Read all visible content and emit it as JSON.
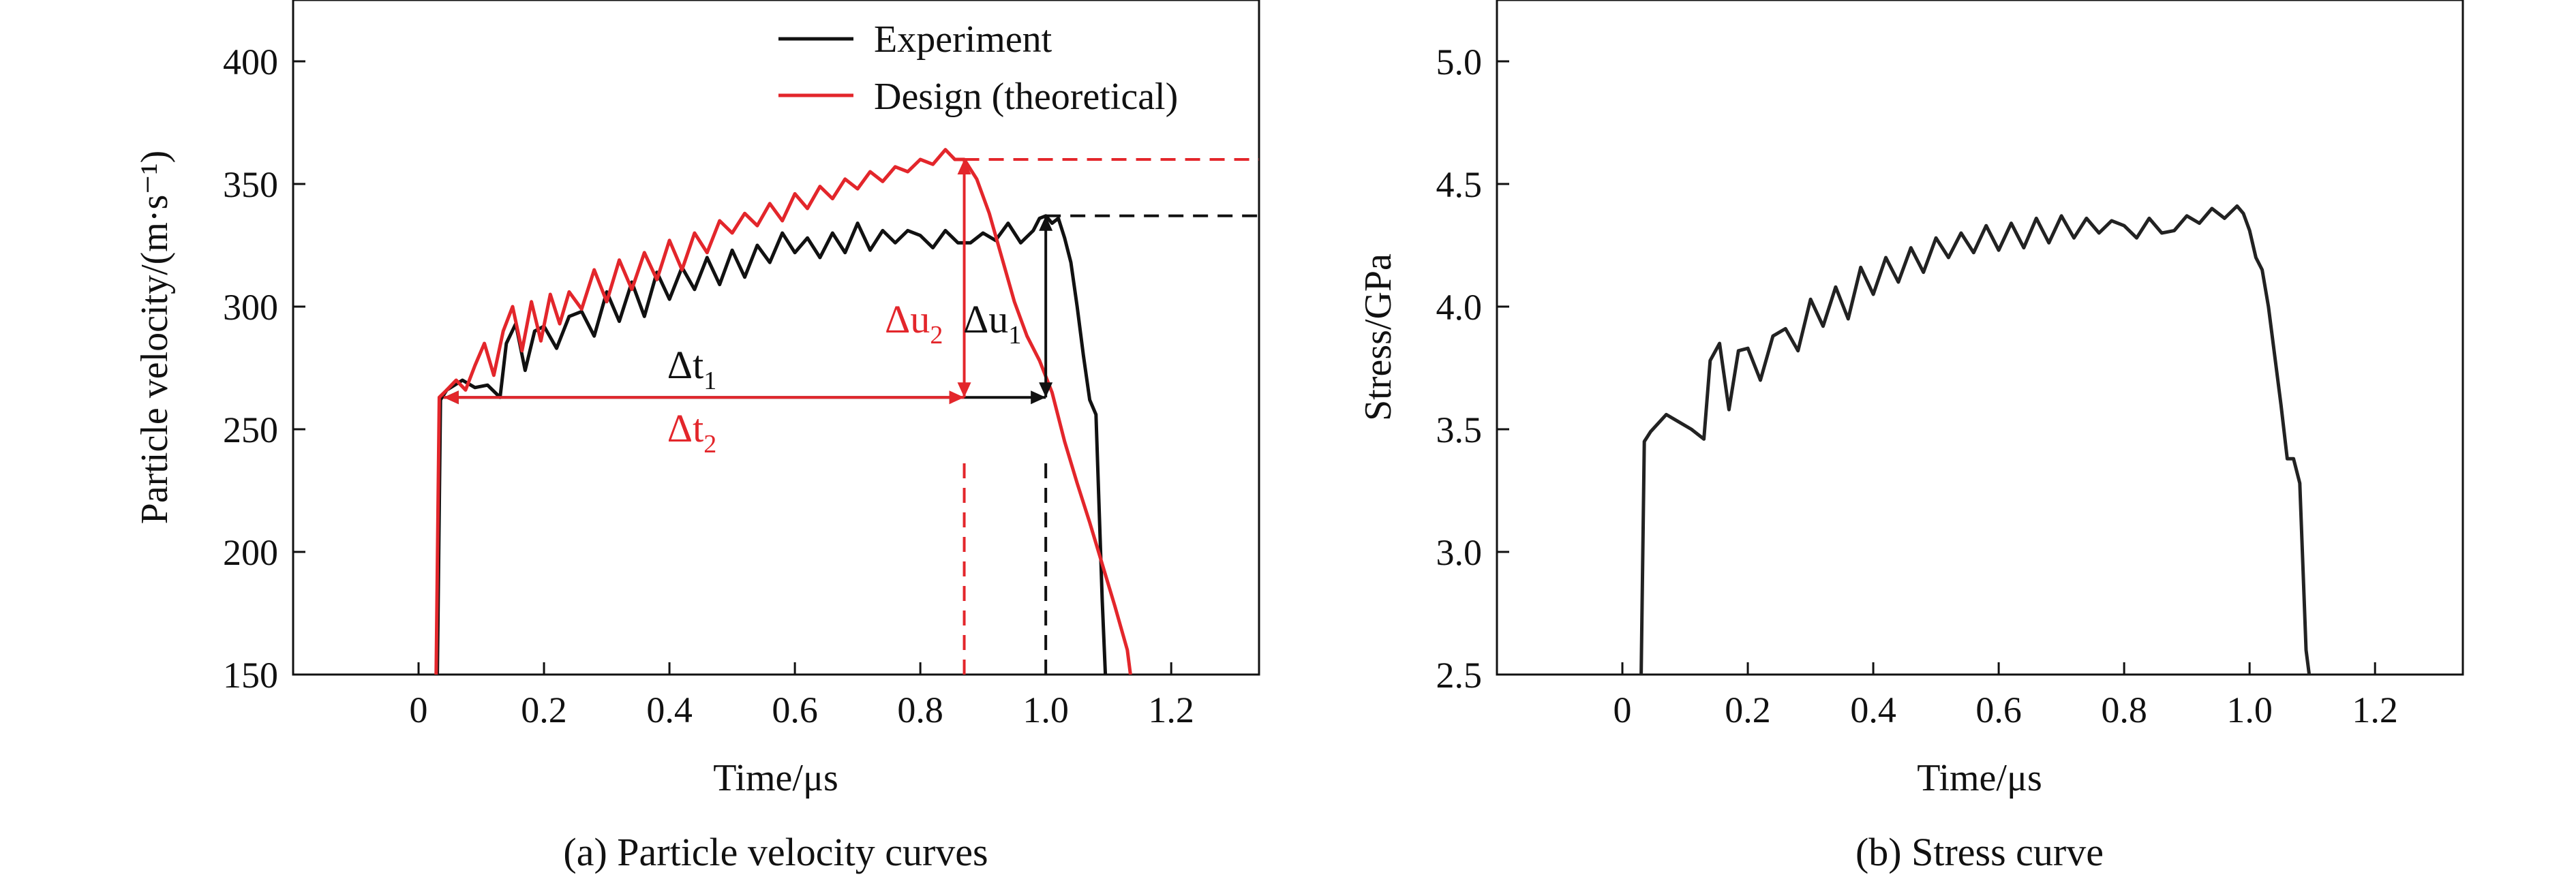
{
  "chart_data": [
    {
      "type": "line",
      "caption": "(a) Particle velocity curves",
      "xlabel": "Time/μs",
      "ylabel": "Particle velocity/(m·s⁻¹)",
      "xlim": [
        -0.2,
        1.34
      ],
      "ylim": [
        150,
        425
      ],
      "xticks": [
        0,
        0.2,
        0.4,
        0.6,
        0.8,
        1.0,
        1.2
      ],
      "xtick_labels": [
        "0",
        "0.2",
        "0.4",
        "0.6",
        "0.8",
        "1.0",
        "1.2"
      ],
      "yticks": [
        150,
        200,
        250,
        300,
        350,
        400
      ],
      "ytick_labels": [
        "150",
        "200",
        "250",
        "300",
        "350",
        "400"
      ],
      "legend_position": "top-right",
      "series": [
        {
          "name": "Experiment",
          "color": "#111111",
          "x": [
            0.03,
            0.035,
            0.045,
            0.07,
            0.09,
            0.11,
            0.13,
            0.14,
            0.155,
            0.17,
            0.185,
            0.2,
            0.22,
            0.24,
            0.26,
            0.28,
            0.3,
            0.32,
            0.34,
            0.36,
            0.38,
            0.4,
            0.42,
            0.44,
            0.46,
            0.48,
            0.5,
            0.52,
            0.54,
            0.56,
            0.58,
            0.6,
            0.62,
            0.64,
            0.66,
            0.68,
            0.7,
            0.72,
            0.74,
            0.76,
            0.78,
            0.8,
            0.82,
            0.84,
            0.86,
            0.88,
            0.9,
            0.92,
            0.94,
            0.96,
            0.98,
            0.99,
            1.0,
            1.01,
            1.02,
            1.03,
            1.04,
            1.05,
            1.06,
            1.07,
            1.08,
            1.09,
            1.095
          ],
          "y": [
            150,
            262,
            266,
            270,
            267,
            268,
            263,
            285,
            293,
            274,
            290,
            292,
            283,
            296,
            298,
            288,
            306,
            294,
            310,
            296,
            314,
            303,
            316,
            307,
            320,
            309,
            323,
            312,
            325,
            318,
            330,
            322,
            328,
            320,
            330,
            322,
            334,
            323,
            331,
            326,
            331,
            329,
            324,
            331,
            326,
            326,
            330,
            327,
            334,
            326,
            331,
            336,
            337,
            334,
            336,
            328,
            318,
            300,
            280,
            262,
            256,
            180,
            150
          ]
        },
        {
          "name": "Design (theoretical)",
          "color": "#e3262b",
          "x": [
            0.028,
            0.033,
            0.045,
            0.06,
            0.075,
            0.09,
            0.105,
            0.12,
            0.135,
            0.15,
            0.165,
            0.18,
            0.195,
            0.21,
            0.225,
            0.24,
            0.26,
            0.28,
            0.3,
            0.32,
            0.34,
            0.36,
            0.38,
            0.4,
            0.42,
            0.44,
            0.46,
            0.48,
            0.5,
            0.52,
            0.54,
            0.56,
            0.58,
            0.6,
            0.62,
            0.64,
            0.66,
            0.68,
            0.7,
            0.72,
            0.74,
            0.76,
            0.78,
            0.8,
            0.82,
            0.84,
            0.855,
            0.87,
            0.89,
            0.91,
            0.93,
            0.95,
            0.97,
            0.99,
            1.01,
            1.03,
            1.05,
            1.07,
            1.09,
            1.11,
            1.13,
            1.135
          ],
          "y": [
            150,
            263,
            266,
            270,
            266,
            276,
            285,
            272,
            290,
            300,
            282,
            302,
            286,
            305,
            293,
            306,
            299,
            315,
            302,
            319,
            307,
            322,
            311,
            327,
            315,
            330,
            322,
            335,
            330,
            338,
            333,
            342,
            335,
            346,
            340,
            349,
            344,
            352,
            348,
            355,
            351,
            357,
            355,
            360,
            358,
            364,
            360,
            360,
            352,
            338,
            320,
            302,
            288,
            278,
            265,
            245,
            228,
            212,
            195,
            178,
            160,
            150
          ]
        }
      ],
      "reference_lines": [
        {
          "kind": "horizontal-dashed",
          "color": "#e3262b",
          "y": 360,
          "x_from": 0.87,
          "x_to": 1.34
        },
        {
          "kind": "horizontal-dashed",
          "color": "#111111",
          "y": 337,
          "x_from": 1.0,
          "x_to": 1.34
        },
        {
          "kind": "vertical-dashed",
          "color": "#e3262b",
          "x": 0.87,
          "y_from": 150,
          "y_to": 240
        },
        {
          "kind": "vertical-dashed",
          "color": "#111111",
          "x": 1.0,
          "y_from": 150,
          "y_to": 240
        }
      ],
      "annotations": [
        {
          "label": "Δt",
          "subscript": "1",
          "color": "#111111",
          "arrow": "double-horizontal",
          "x_from": 0.04,
          "x_to": 1.0,
          "y": 263
        },
        {
          "label": "Δt",
          "subscript": "2",
          "color": "#e3262b",
          "arrow": "double-horizontal",
          "x_from": 0.04,
          "x_to": 0.87,
          "y": 263
        },
        {
          "label": "Δu",
          "subscript": "2",
          "color": "#e3262b",
          "arrow": "double-vertical",
          "x": 0.87,
          "y_from": 263,
          "y_to": 360
        },
        {
          "label": "Δu",
          "subscript": "1",
          "color": "#111111",
          "arrow": "double-vertical",
          "x": 1.0,
          "y_from": 263,
          "y_to": 337
        }
      ]
    },
    {
      "type": "line",
      "caption": "(b) Stress curve",
      "xlabel": "Time/μs",
      "ylabel": "Stress/GPa",
      "xlim": [
        -0.2,
        1.34
      ],
      "ylim": [
        2.5,
        5.25
      ],
      "xticks": [
        0,
        0.2,
        0.4,
        0.6,
        0.8,
        1.0,
        1.2
      ],
      "xtick_labels": [
        "0",
        "0.2",
        "0.4",
        "0.6",
        "0.8",
        "1.0",
        "1.2"
      ],
      "yticks": [
        2.5,
        3.0,
        3.5,
        4.0,
        4.5,
        5.0
      ],
      "ytick_labels": [
        "2.5",
        "3.0",
        "3.5",
        "4.0",
        "4.5",
        "5.0"
      ],
      "series": [
        {
          "name": "Stress",
          "color": "#222222",
          "x": [
            0.03,
            0.035,
            0.045,
            0.07,
            0.09,
            0.11,
            0.13,
            0.14,
            0.155,
            0.17,
            0.185,
            0.2,
            0.22,
            0.24,
            0.26,
            0.28,
            0.3,
            0.32,
            0.34,
            0.36,
            0.38,
            0.4,
            0.42,
            0.44,
            0.46,
            0.48,
            0.5,
            0.52,
            0.54,
            0.56,
            0.58,
            0.6,
            0.62,
            0.64,
            0.66,
            0.68,
            0.7,
            0.72,
            0.74,
            0.76,
            0.78,
            0.8,
            0.82,
            0.84,
            0.86,
            0.88,
            0.9,
            0.92,
            0.94,
            0.96,
            0.98,
            0.99,
            1.0,
            1.01,
            1.02,
            1.03,
            1.04,
            1.05,
            1.06,
            1.07,
            1.08,
            1.09,
            1.095
          ],
          "y": [
            2.5,
            3.45,
            3.49,
            3.56,
            3.53,
            3.5,
            3.46,
            3.78,
            3.85,
            3.58,
            3.82,
            3.83,
            3.7,
            3.88,
            3.91,
            3.82,
            4.03,
            3.92,
            4.08,
            3.95,
            4.16,
            4.05,
            4.2,
            4.1,
            4.24,
            4.14,
            4.28,
            4.2,
            4.3,
            4.22,
            4.33,
            4.23,
            4.34,
            4.24,
            4.36,
            4.26,
            4.37,
            4.28,
            4.36,
            4.3,
            4.35,
            4.33,
            4.28,
            4.36,
            4.3,
            4.31,
            4.37,
            4.34,
            4.4,
            4.36,
            4.41,
            4.38,
            4.31,
            4.2,
            4.15,
            4.0,
            3.8,
            3.6,
            3.38,
            3.38,
            3.28,
            2.6,
            2.5
          ]
        }
      ]
    }
  ]
}
